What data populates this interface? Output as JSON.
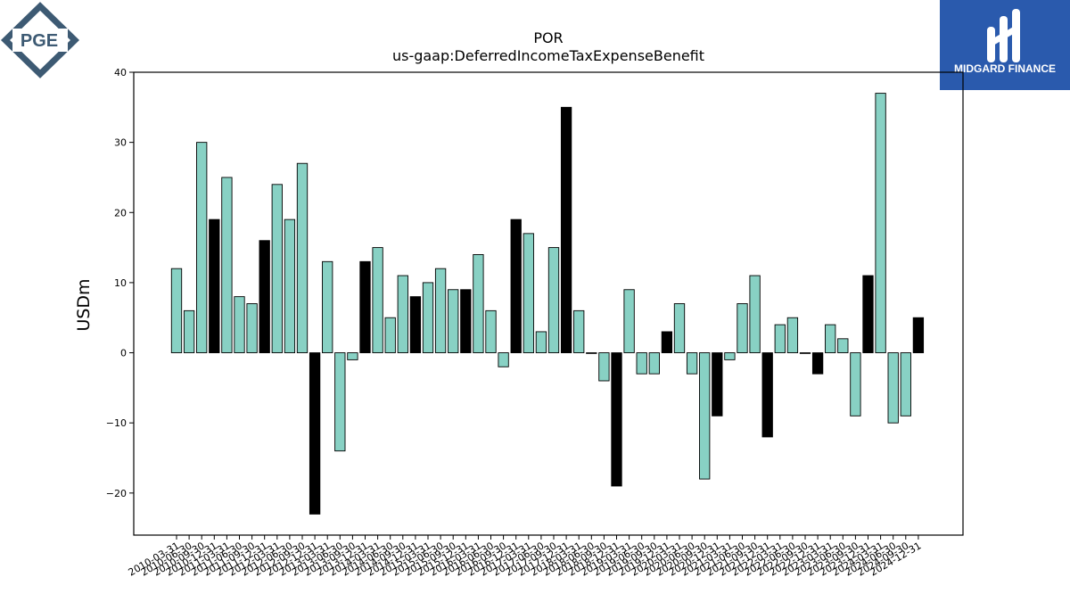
{
  "logos": {
    "left_text": "PGE",
    "right_text": "MIDGARD FINANCE",
    "left_color": "#3d5a73",
    "right_bg": "#2a5aad"
  },
  "chart_data": {
    "type": "bar",
    "title": "POR",
    "subtitle": "us-gaap:DeferredIncomeTaxExpenseBenefit",
    "xlabel": "",
    "ylabel": "USDm",
    "ylim": [
      -26,
      40
    ],
    "yticks": [
      -20,
      -10,
      0,
      10,
      20,
      30,
      40
    ],
    "ytick_labels": [
      "−20",
      "−10",
      "0",
      "10",
      "20",
      "30",
      "40"
    ],
    "grid": false,
    "colors": {
      "quarter": "#88d1c4",
      "annual": "#000000",
      "edge": "#000000"
    },
    "categories": [
      "2010-03-31",
      "2010-06-30",
      "2010-09-30",
      "2010-12-31",
      "2011-03-31",
      "2011-06-30",
      "2011-09-30",
      "2011-12-31",
      "2012-03-31",
      "2012-06-30",
      "2012-09-30",
      "2012-12-31",
      "2013-03-31",
      "2013-06-30",
      "2013-09-30",
      "2013-12-31",
      "2014-03-31",
      "2014-06-30",
      "2014-09-30",
      "2014-12-31",
      "2015-03-31",
      "2015-06-30",
      "2015-09-30",
      "2015-12-31",
      "2016-03-31",
      "2016-06-30",
      "2016-09-30",
      "2016-12-31",
      "2017-03-31",
      "2017-06-30",
      "2017-09-30",
      "2017-12-31",
      "2018-03-31",
      "2018-06-30",
      "2018-09-30",
      "2018-12-31",
      "2019-03-31",
      "2019-06-30",
      "2019-09-30",
      "2019-12-31",
      "2020-03-31",
      "2020-06-30",
      "2020-09-30",
      "2020-12-31",
      "2021-03-31",
      "2021-06-30",
      "2021-09-30",
      "2021-12-31",
      "2022-03-31",
      "2022-06-30",
      "2022-09-30",
      "2022-12-31",
      "2023-03-31",
      "2023-06-30",
      "2023-09-30",
      "2023-12-31",
      "2024-03-31",
      "2024-06-30",
      "2024-09-30",
      "2024-12-31"
    ],
    "values": [
      12,
      6,
      30,
      19,
      25,
      8,
      7,
      16,
      24,
      19,
      27,
      -23,
      13,
      -14,
      -1,
      13,
      15,
      5,
      11,
      8,
      10,
      12,
      9,
      9,
      14,
      6,
      -2,
      19,
      17,
      3,
      15,
      35,
      6,
      0,
      -4,
      -19,
      9,
      -3,
      -3,
      3,
      7,
      -3,
      -18,
      -9,
      -1,
      7,
      11,
      -12,
      4,
      5,
      0,
      -3,
      4,
      2,
      -9,
      11,
      37,
      -10,
      -9,
      5
    ]
  }
}
